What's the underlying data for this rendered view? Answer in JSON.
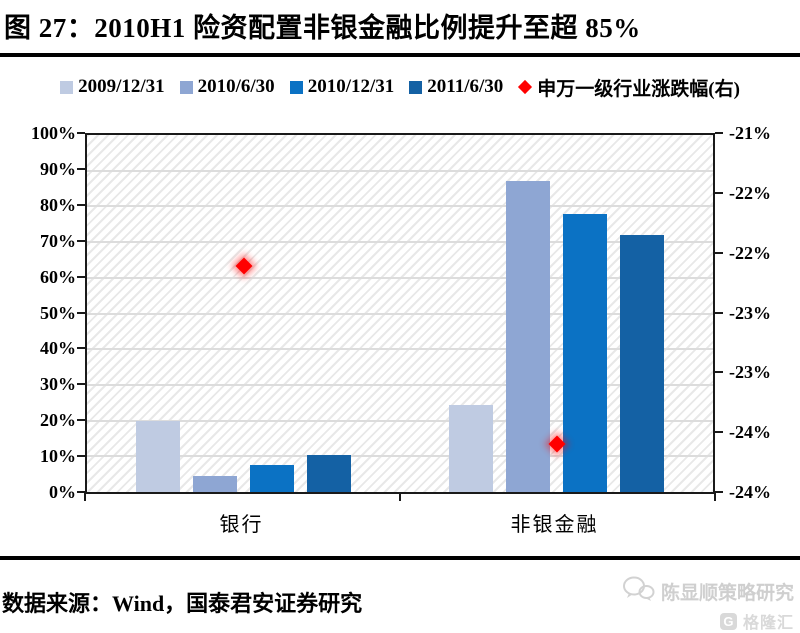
{
  "figure": {
    "title": "图 27：2010H1 险资配置非银金融比例提升至超 85%",
    "source": "数据来源：Wind，国泰君安证券研究"
  },
  "watermark": {
    "account_name": "陈显顺策略研究",
    "platform": "格隆汇",
    "platform_letter": "G"
  },
  "chart_data": {
    "type": "bar",
    "title": "2010H1 险资配置非银金融比例提升至超 85%",
    "categories": [
      "银行",
      "非银金融"
    ],
    "series": [
      {
        "name": "2009/12/31",
        "color": "#BFCBE2",
        "values": [
          20,
          24.5
        ]
      },
      {
        "name": "2010/6/30",
        "color": "#8EA6D3",
        "values": [
          4.5,
          87
        ]
      },
      {
        "name": "2010/12/31",
        "color": "#0B72C4",
        "values": [
          7.5,
          78
        ]
      },
      {
        "name": "2011/6/30",
        "color": "#1461A4",
        "values": [
          10.5,
          72
        ]
      }
    ],
    "scatter_series": {
      "name": "申万一级行业涨跌幅(右)",
      "color": "#FF0000",
      "marker": "diamond",
      "axis": "right",
      "values": [
        -22.1,
        -23.6
      ]
    },
    "left_axis": {
      "min": 0,
      "max": 100,
      "step": 10,
      "tick_labels": [
        "100%",
        "90%",
        "80%",
        "70%",
        "60%",
        "50%",
        "40%",
        "30%",
        "20%",
        "10%",
        "0%"
      ]
    },
    "right_axis": {
      "min": -24,
      "max": -21,
      "tick_values": [
        -21,
        -21.5,
        -22,
        -22.5,
        -23,
        -23.5,
        -24
      ],
      "tick_labels": [
        "-21%",
        "-22%",
        "-22%",
        "-23%",
        "-23%",
        "-24%",
        "-24%"
      ]
    },
    "grid": "horizontal",
    "legend_position": "top",
    "plot_background": "diagonal-hatch"
  }
}
